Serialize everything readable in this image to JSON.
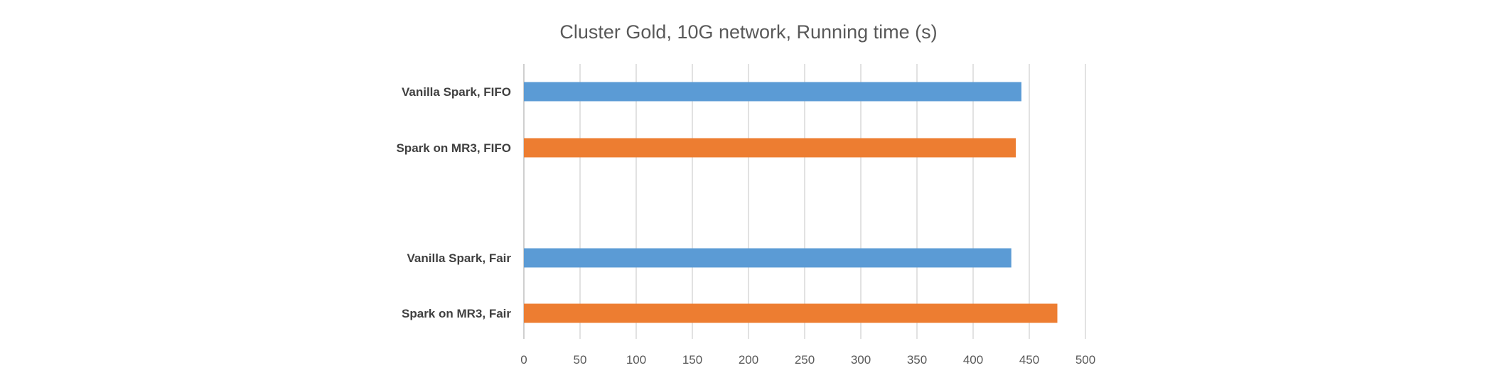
{
  "chart_data": {
    "type": "bar",
    "orientation": "horizontal",
    "title": "Cluster Gold, 10G network, Running time (s)",
    "xlabel": "",
    "ylabel": "",
    "xlim": [
      0,
      500
    ],
    "ticks": [
      0,
      50,
      100,
      150,
      200,
      250,
      300,
      350,
      400,
      450,
      500
    ],
    "grid": true,
    "legend": "none",
    "bars": [
      {
        "label": "Vanilla Spark, FIFO",
        "value": 443,
        "color": "#5b9bd5"
      },
      {
        "label": "Spark on MR3, FIFO",
        "value": 438,
        "color": "#ed7d31"
      },
      {
        "label": "Vanilla Spark, Fair",
        "value": 434,
        "color": "#5b9bd5"
      },
      {
        "label": "Spark on MR3, Fair",
        "value": 475,
        "color": "#ed7d31"
      }
    ]
  }
}
